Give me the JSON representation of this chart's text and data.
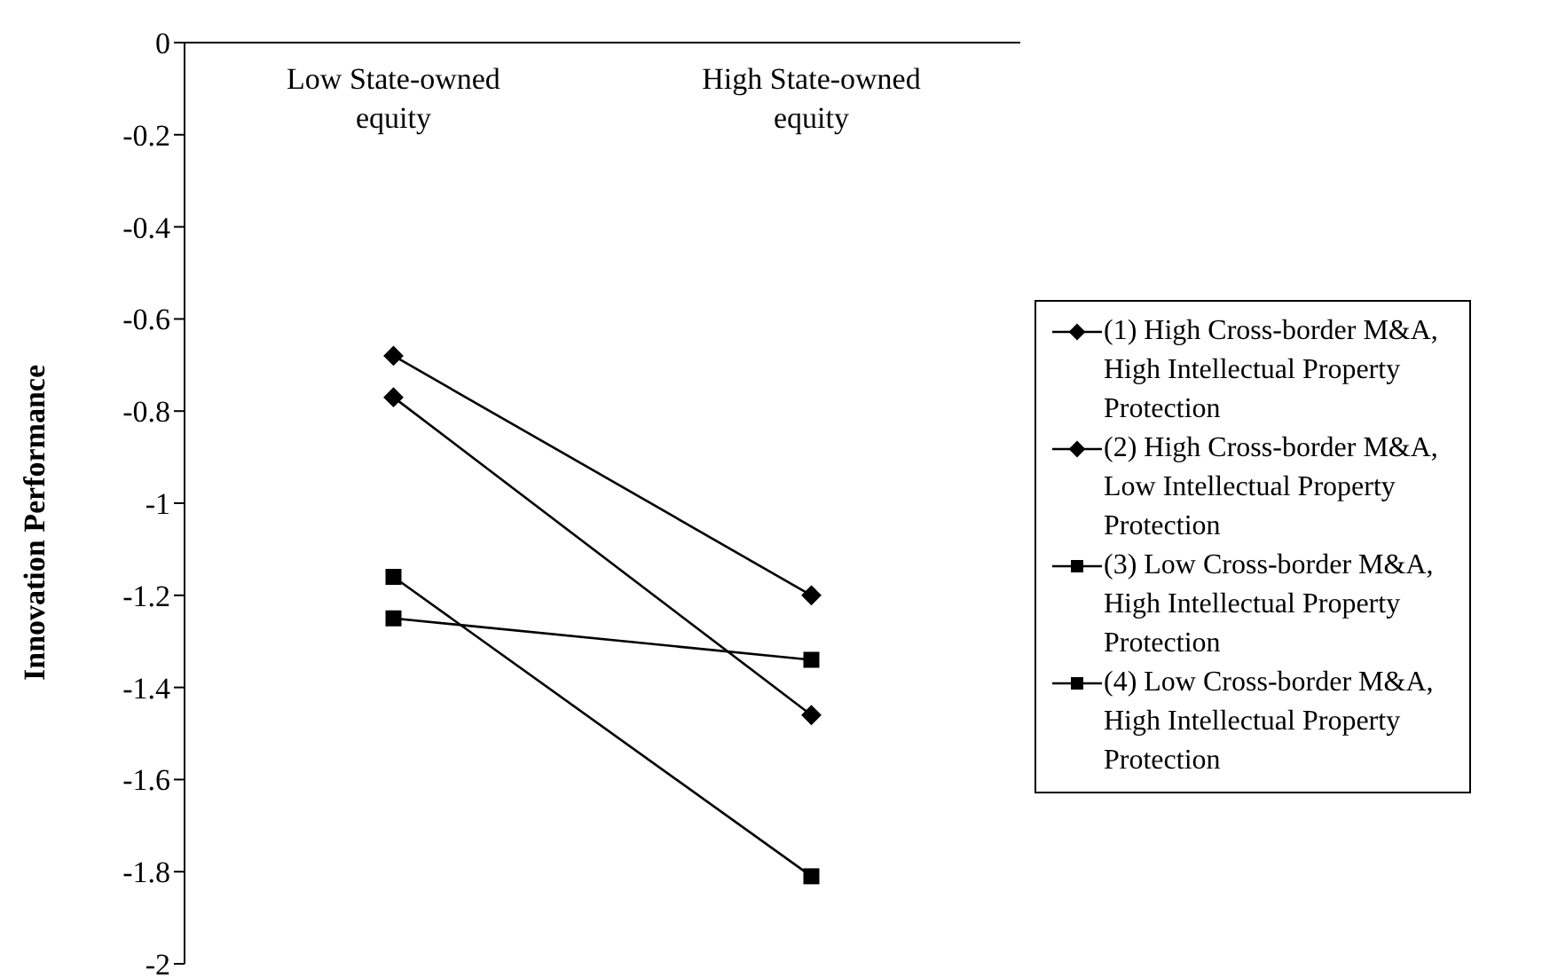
{
  "chart_data": {
    "type": "line",
    "ylabel": "Innovation Performance",
    "categories": [
      "Low State-owned equity",
      "High State-owned equity"
    ],
    "series": [
      {
        "name": "(1) High Cross-border M&A, High Intellectual Property Protection",
        "color": "#000000",
        "marker": "diamond",
        "values": [
          -0.68,
          -1.2
        ]
      },
      {
        "name": "(2) High Cross-border M&A, Low Intellectual Property Protection",
        "color": "#000000",
        "marker": "diamond",
        "values": [
          -0.77,
          -1.46
        ]
      },
      {
        "name": "(3) Low Cross-border M&A, High Intellectual Property Protection",
        "color": "#000000",
        "marker": "square",
        "values": [
          -1.25,
          -1.34
        ]
      },
      {
        "name": "(4) Low Cross-border M&A, High Intellectual Property Protection",
        "color": "#000000",
        "marker": "square",
        "values": [
          -1.16,
          -1.81
        ]
      }
    ],
    "ylim": [
      -2,
      0
    ],
    "yticks": [
      0,
      -0.2,
      -0.4,
      -0.6,
      -0.8,
      -1,
      -1.2,
      -1.4,
      -1.6,
      -1.8,
      -2
    ],
    "grid": false,
    "legend": "right",
    "line_style": "solid"
  }
}
